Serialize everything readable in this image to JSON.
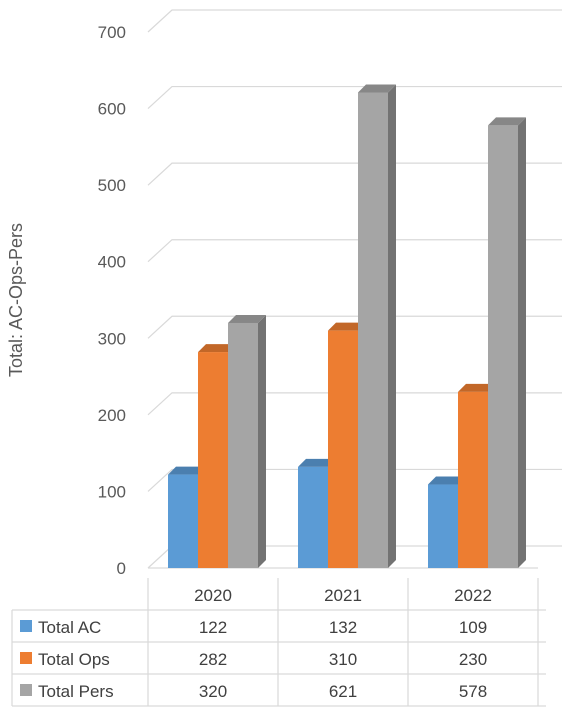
{
  "chart_data": {
    "type": "bar",
    "ylabel": "Total: AC-Ops-Pers",
    "ylim": [
      0,
      700
    ],
    "yticks": [
      0,
      100,
      200,
      300,
      400,
      500,
      600,
      700
    ],
    "categories": [
      "2020",
      "2021",
      "2022"
    ],
    "series": [
      {
        "name": "Total AC",
        "color": "#5b9bd5",
        "values": [
          122,
          132,
          109
        ]
      },
      {
        "name": "Total Ops",
        "color": "#ed7d31",
        "values": [
          282,
          310,
          230
        ]
      },
      {
        "name": "Total Pers",
        "color": "#a5a5a5",
        "values": [
          320,
          621,
          578
        ]
      }
    ],
    "grid": true,
    "style": "3d-clustered-column",
    "legend": "data-table"
  }
}
